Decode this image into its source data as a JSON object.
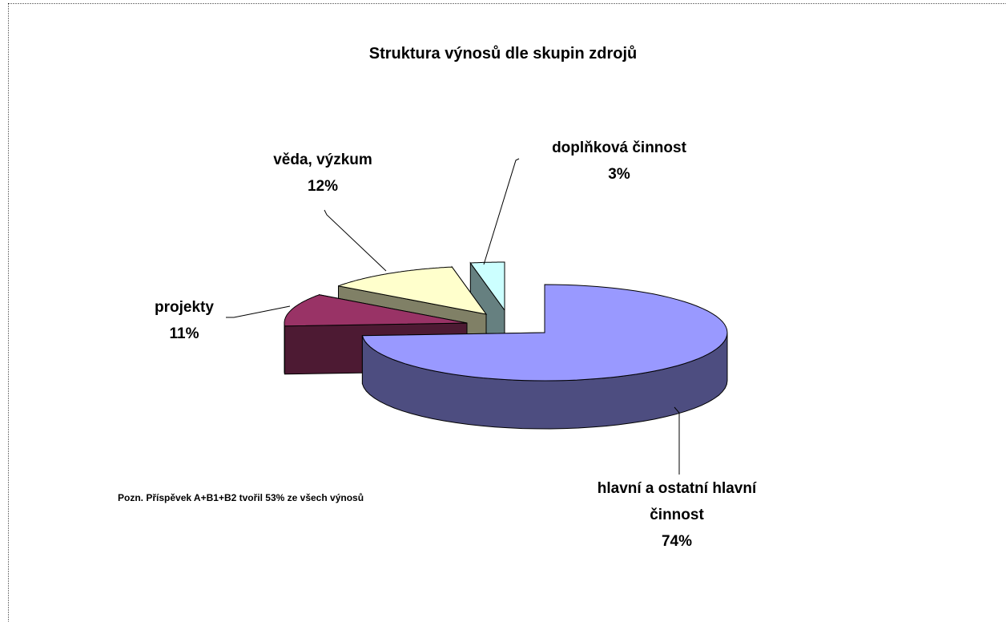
{
  "chart_data": {
    "type": "pie3d",
    "title": "Struktura výnosů  dle skupin zdrojů",
    "categories": [
      "hlavní  a ostatní hlavní činnost",
      "projekty",
      "věda, výzkum",
      "doplňková činnost"
    ],
    "values": [
      74,
      11,
      12,
      3
    ],
    "value_labels": [
      "74%",
      "11%",
      "12%",
      "3%"
    ],
    "colors": [
      "#9999ff",
      "#993366",
      "#ffffcc",
      "#ccffff"
    ],
    "annotation": "Pozn. Příspěvek A+B1+B2 tvořil 53% ze všech  výnosů"
  }
}
